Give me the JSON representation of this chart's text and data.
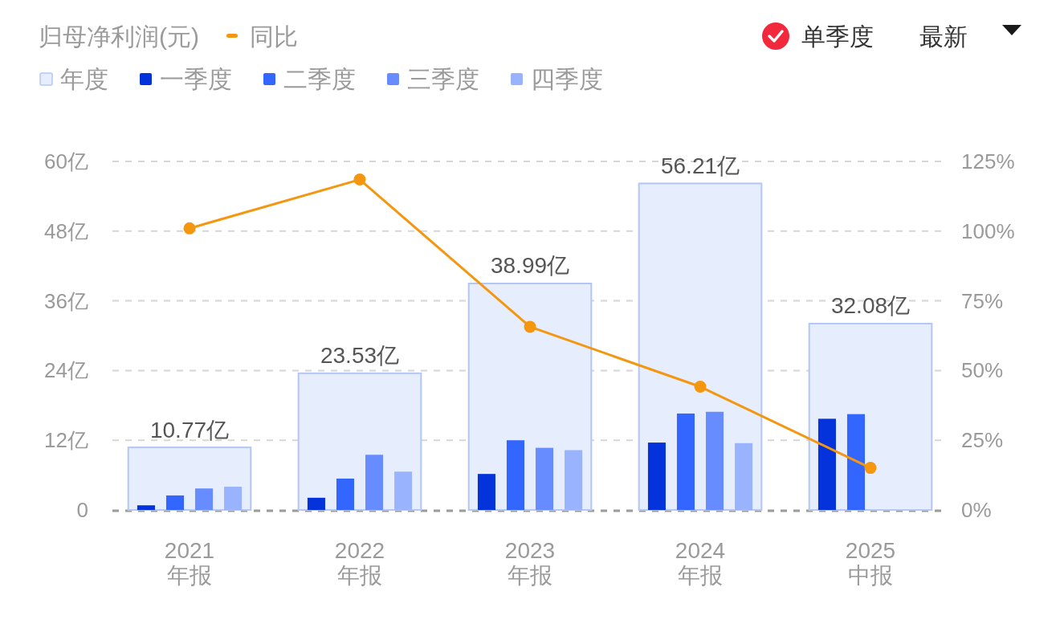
{
  "chart_data": {
    "type": "bar",
    "title": "归母净利润(元)",
    "categories": [
      "2021\n年报",
      "2022\n年报",
      "2023\n年报",
      "2024\n年报",
      "2025\n中报"
    ],
    "series": [
      {
        "name": "年度",
        "color": "#e6edfd",
        "values": [
          10.77,
          23.53,
          38.99,
          56.21,
          32.08
        ],
        "value_labels": [
          "10.77亿",
          "23.53亿",
          "38.99亿",
          "56.21亿",
          "32.08亿"
        ]
      },
      {
        "name": "一季度",
        "color": "#0433db",
        "values": [
          0.8,
          2.1,
          6.2,
          11.6,
          15.7
        ]
      },
      {
        "name": "二季度",
        "color": "#3366ff",
        "values": [
          2.5,
          5.4,
          12.0,
          16.6,
          16.5
        ]
      },
      {
        "name": "三季度",
        "color": "#668cff",
        "values": [
          3.7,
          9.5,
          10.7,
          16.9,
          null
        ]
      },
      {
        "name": "四季度",
        "color": "#99b3ff",
        "values": [
          4.0,
          6.6,
          10.3,
          11.5,
          null
        ]
      },
      {
        "name": "同比",
        "type": "line",
        "axis": "y2",
        "color": "#f5960f",
        "values": [
          101,
          118.5,
          65.7,
          44.2,
          15.1
        ]
      }
    ],
    "ylim": [
      0,
      60
    ],
    "yticks": [
      {
        "value": 0,
        "label": "0"
      },
      {
        "value": 12,
        "label": "12亿"
      },
      {
        "value": 24,
        "label": "24亿"
      },
      {
        "value": 36,
        "label": "36亿"
      },
      {
        "value": 48,
        "label": "48亿"
      },
      {
        "value": 60,
        "label": "60亿"
      }
    ],
    "y2lim": [
      0,
      125
    ],
    "y2ticks": [
      {
        "value": 0,
        "label": "0%"
      },
      {
        "value": 25,
        "label": "25%"
      },
      {
        "value": 50,
        "label": "50%"
      },
      {
        "value": 75,
        "label": "75%"
      },
      {
        "value": 100,
        "label": "100%"
      },
      {
        "value": 125,
        "label": "125%"
      }
    ],
    "grid": "y",
    "legend": "top left",
    "marker": "circle",
    "annotations": [
      "单季度",
      "最新"
    ]
  }
}
